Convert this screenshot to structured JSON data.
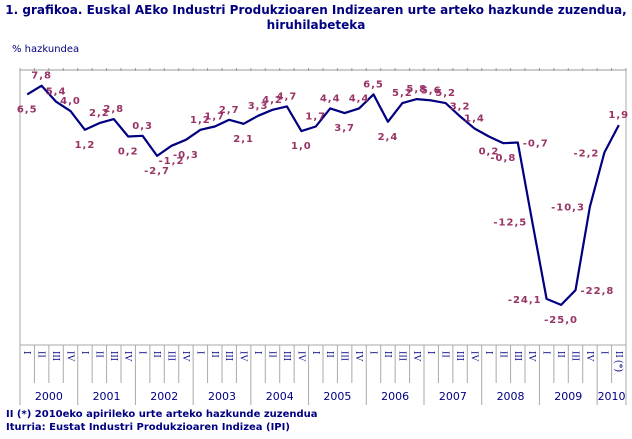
{
  "chart_data": {
    "type": "line",
    "title": "1. grafikoa. Euskal AEko Industri Produkzioaren Indizearen urte arteko hazkunde zuzendua, hiruhilabeteka",
    "ylabel": "% hazkundea",
    "xlabel": "",
    "ylim": [
      -31,
      10
    ],
    "grid": false,
    "series_color": "#000080",
    "label_color": "#993366",
    "years": [
      "2000",
      "2001",
      "2002",
      "2003",
      "2004",
      "2005",
      "2006",
      "2007",
      "2008",
      "2009",
      "2010"
    ],
    "quarter_labels": [
      "I",
      "II",
      "III",
      "IV"
    ],
    "last_quarter_label": "II (*)",
    "values": [
      6.5,
      7.8,
      5.4,
      4.0,
      1.2,
      2.2,
      2.8,
      0.2,
      0.3,
      -2.7,
      -1.2,
      -0.3,
      1.2,
      1.7,
      2.7,
      2.1,
      3.3,
      4.2,
      4.7,
      1.0,
      1.7,
      4.4,
      3.7,
      4.4,
      6.5,
      2.4,
      5.2,
      5.8,
      5.6,
      5.2,
      3.2,
      1.4,
      0.2,
      -0.8,
      -0.7,
      -12.5,
      -24.1,
      -25.0,
      -22.8,
      -10.3,
      -2.2,
      1.9
    ],
    "data_labels": [
      "6,5",
      "7,8",
      "5,4",
      "4,0",
      "1,2",
      "2,2",
      "2,8",
      "0,2",
      "0,3",
      "-2,7",
      "-1,2",
      "-0,3",
      "1,2",
      "1,7",
      "2,7",
      "2,1",
      "3,3",
      "4,2",
      "4,7",
      "1,0",
      "1,7",
      "4,4",
      "3,7",
      "4,4",
      "6,5",
      "2,4",
      "5,2",
      "5,8",
      "5,6",
      "5,2",
      "3,2",
      "1,4",
      "0,2",
      "-0,8",
      "-0,7",
      "-12,5",
      "-24,1",
      "-25,0",
      "-22,8",
      "-10,3",
      "-2,2",
      "1,9"
    ]
  },
  "footnotes": {
    "note": "II (*) 2010eko apirileko urte arteko hazkunde zuzendua",
    "source": "Iturria: Eustat Industri Produkzioaren Indizea (IPI)"
  }
}
